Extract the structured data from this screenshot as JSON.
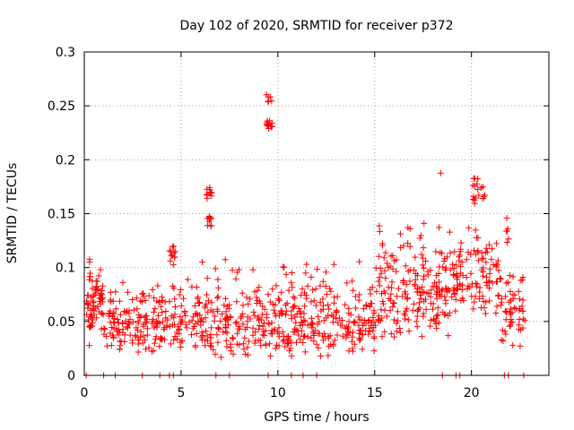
{
  "chart_data": {
    "type": "scatter",
    "title": "Day 102 of 2020, SRMTID for receiver p372",
    "xlabel": "GPS time / hours",
    "ylabel": "SRMTID / TECUs",
    "xlim": [
      0,
      24
    ],
    "ylim": [
      0,
      0.3
    ],
    "xticks": [
      "0",
      "5",
      "10",
      "15",
      "20"
    ],
    "yticks": [
      "0",
      "0.05",
      "0.1",
      "0.15",
      "0.2",
      "0.25",
      "0.3"
    ],
    "grid": true,
    "marker": "+",
    "colors": {
      "points": "#ff0000"
    },
    "series": [
      {
        "name": "SRMTID",
        "clusters": [
          {
            "x_range": [
              0.1,
              0.4
            ],
            "y_range": [
              0.02,
              0.09
            ],
            "count": 20
          },
          {
            "x_range": [
              0.25,
              0.35
            ],
            "y_range": [
              0.08,
              0.12
            ],
            "count": 6
          },
          {
            "x_range": [
              0.4,
              1.0
            ],
            "y_range": [
              0.04,
              0.105
            ],
            "count": 45
          },
          {
            "x_range": [
              1.0,
              4.3
            ],
            "y_range": [
              0.02,
              0.075
            ],
            "count": 140
          },
          {
            "x_range": [
              1.0,
              4.3
            ],
            "y_range": [
              0.06,
              0.09
            ],
            "count": 15
          },
          {
            "x_range": [
              4.4,
              4.7
            ],
            "y_range": [
              0.1,
              0.122
            ],
            "count": 12
          },
          {
            "x_range": [
              4.4,
              9.4
            ],
            "y_range": [
              0.015,
              0.085
            ],
            "count": 200
          },
          {
            "x_range": [
              5.0,
              9.4
            ],
            "y_range": [
              0.07,
              0.11
            ],
            "count": 14
          },
          {
            "x_range": [
              6.3,
              6.6
            ],
            "y_range": [
              0.135,
              0.15
            ],
            "count": 10
          },
          {
            "x_range": [
              6.3,
              6.6
            ],
            "y_range": [
              0.16,
              0.18
            ],
            "count": 10
          },
          {
            "x_range": [
              9.4,
              9.7
            ],
            "y_range": [
              0.225,
              0.24
            ],
            "count": 14
          },
          {
            "x_range": [
              9.4,
              9.7
            ],
            "y_range": [
              0.245,
              0.265
            ],
            "count": 6
          },
          {
            "x_range": [
              9.4,
              15.0
            ],
            "y_range": [
              0.015,
              0.085
            ],
            "count": 240
          },
          {
            "x_range": [
              10.0,
              15.0
            ],
            "y_range": [
              0.07,
              0.11
            ],
            "count": 22
          },
          {
            "x_range": [
              15.0,
              19.0
            ],
            "y_range": [
              0.03,
              0.12
            ],
            "count": 180
          },
          {
            "x_range": [
              15.0,
              19.0
            ],
            "y_range": [
              0.11,
              0.15
            ],
            "count": 20
          },
          {
            "x_range": [
              18.4,
              18.6
            ],
            "y_range": [
              0.185,
              0.19
            ],
            "count": 1
          },
          {
            "x_range": [
              19.0,
              21.5
            ],
            "y_range": [
              0.05,
              0.14
            ],
            "count": 110
          },
          {
            "x_range": [
              20.0,
              20.7
            ],
            "y_range": [
              0.15,
              0.193
            ],
            "count": 18
          },
          {
            "x_range": [
              21.5,
              22.8
            ],
            "y_range": [
              0.02,
              0.1
            ],
            "count": 55
          },
          {
            "x_range": [
              21.8,
              22.1
            ],
            "y_range": [
              0.12,
              0.148
            ],
            "count": 6
          }
        ],
        "zero_points_x": [
          0.1,
          1.0,
          1.6,
          3.0,
          3.9,
          4.4,
          4.6,
          6.8,
          7.5,
          9.5,
          10.7,
          11.3,
          12.0,
          18.5,
          19.2,
          19.4,
          21.7,
          21.9,
          22.7
        ]
      }
    ]
  }
}
